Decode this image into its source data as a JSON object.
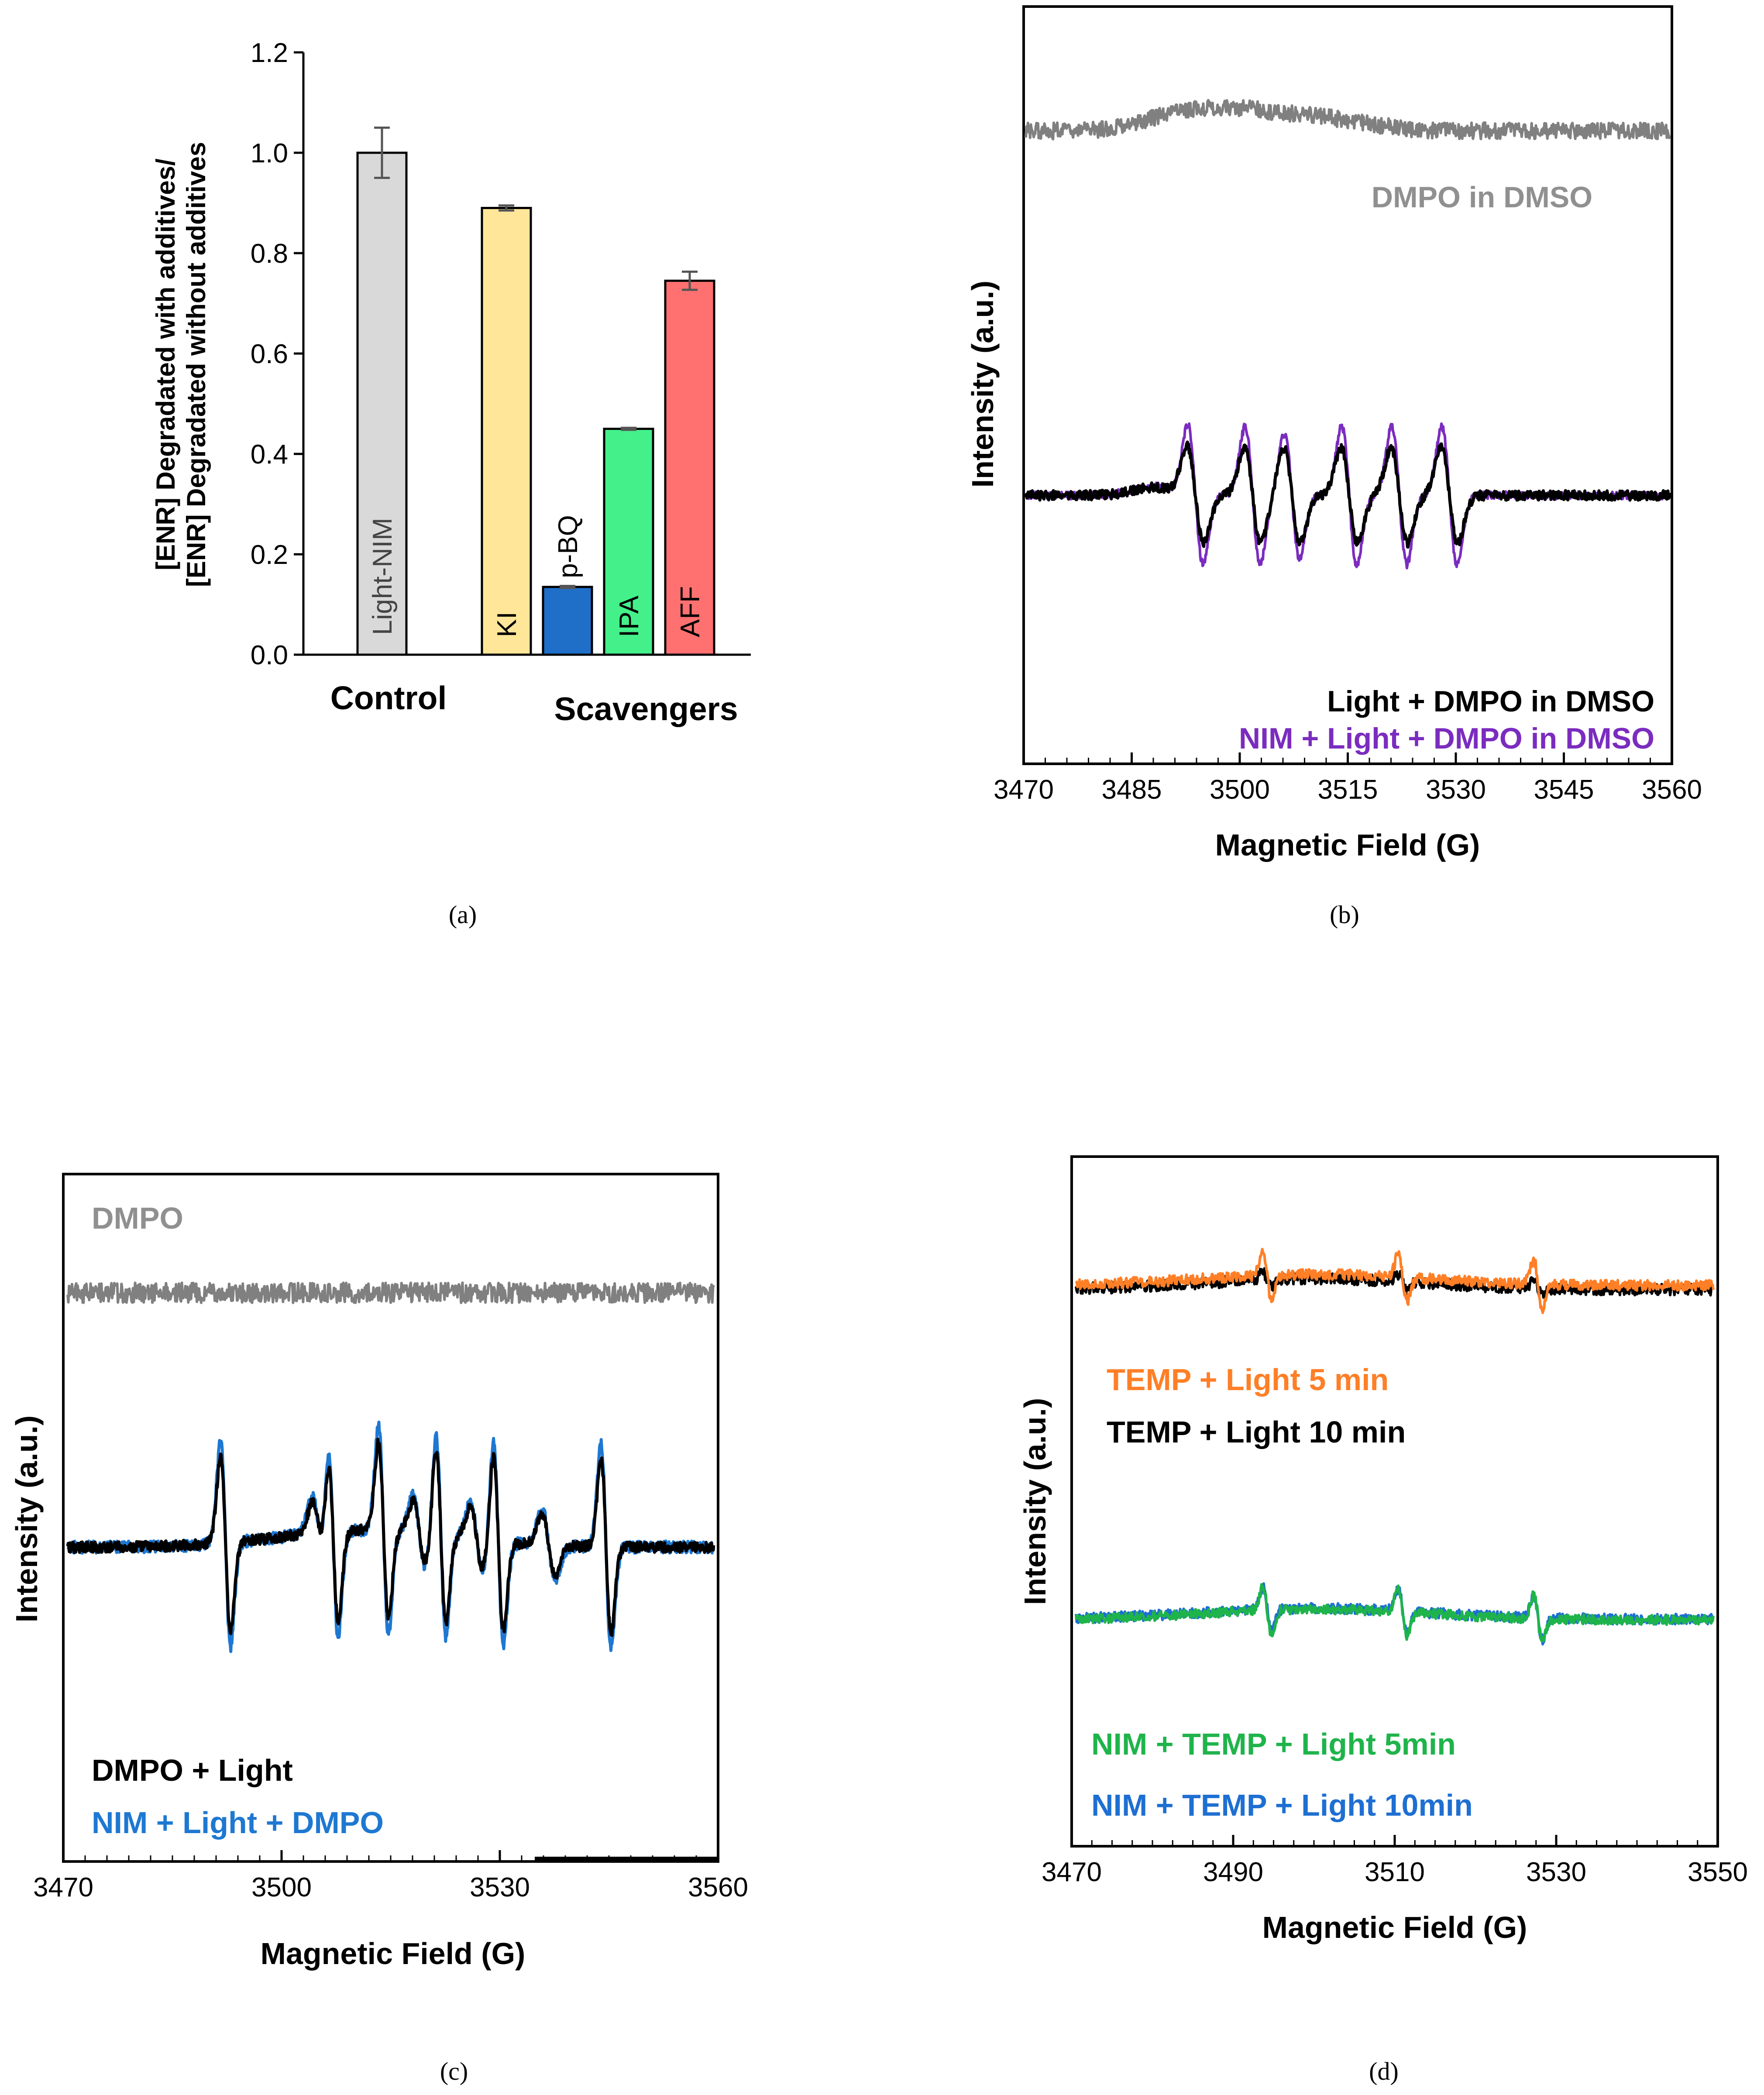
{
  "figure": {
    "panel_labels": [
      "(a)",
      "(b)",
      "(c)",
      "(d)"
    ]
  },
  "chart_data": [
    {
      "type": "bar",
      "panel": "a",
      "ylabel_line1": "[ENR] Degradated with additives/",
      "ylabel_line2": "[ENR] Degradated without additives",
      "ylim": [
        0,
        1.2
      ],
      "yticks": [
        "0.0",
        "0.2",
        "0.4",
        "0.6",
        "0.8",
        "1.0",
        "1.2"
      ],
      "group_labels": [
        "Control",
        "Scavengers"
      ],
      "bars": [
        {
          "label": "Light-NIM",
          "value": 1.0,
          "error": 0.05,
          "color": "#d9d9d9"
        },
        {
          "label": "KI",
          "value": 0.89,
          "error": 0.005,
          "color": "#ffe699"
        },
        {
          "label": "p-BQ",
          "value": 0.135,
          "error": 0.002,
          "color": "#1f6fc8"
        },
        {
          "label": "IPA",
          "value": 0.45,
          "error": 0.002,
          "color": "#44f08a"
        },
        {
          "label": "AFF",
          "value": 0.745,
          "error": 0.018,
          "color": "#ff7171"
        }
      ]
    },
    {
      "type": "line",
      "panel": "b",
      "xlabel": "Magnetic Field (G)",
      "ylabel": "Intensity (a.u.)",
      "xlim": [
        3470,
        3560
      ],
      "xticks": [
        "3470",
        "3485",
        "3500",
        "3515",
        "3530",
        "3545",
        "3560"
      ],
      "peaks": [
        3492.5,
        3500.5,
        3506,
        3514,
        3521,
        3528
      ],
      "series": [
        {
          "name": "DMPO in DMSO",
          "color": "#808080"
        },
        {
          "name": "Light + DMPO in DMSO",
          "color": "#000000"
        },
        {
          "name": "NIM + Light + DMPO in DMSO",
          "color": "#7b2cbf"
        }
      ]
    },
    {
      "type": "line",
      "panel": "c",
      "xlabel": "Magnetic Field (G)",
      "ylabel": "Intensity (a.u.)",
      "xlim": [
        3470,
        3560
      ],
      "xticks": [
        "3470",
        "3500",
        "3530",
        "3560"
      ],
      "peaks": [
        3492,
        3507,
        3514,
        3522,
        3530,
        3545
      ],
      "series": [
        {
          "name": "DMPO",
          "color": "#808080"
        },
        {
          "name": "DMPO + Light",
          "color": "#000000"
        },
        {
          "name": "NIM + Light + DMPO",
          "color": "#1e78d2"
        }
      ]
    },
    {
      "type": "line",
      "panel": "d",
      "xlabel": "Magnetic Field (G)",
      "ylabel": "Intensity (a.u.)",
      "xlim": [
        3470,
        3550
      ],
      "xticks": [
        "3470",
        "3490",
        "3510",
        "3530",
        "3550"
      ],
      "peaks": [
        3494,
        3511,
        3528
      ],
      "series": [
        {
          "name": "TEMP + Light 5 min",
          "color": "#ff7f27"
        },
        {
          "name": "TEMP + Light 10 min",
          "color": "#000000"
        },
        {
          "name": "NIM + TEMP + Light 5min",
          "color": "#1fb44b"
        },
        {
          "name": "NIM + TEMP + Light 10min",
          "color": "#1e6fd2"
        }
      ]
    }
  ]
}
